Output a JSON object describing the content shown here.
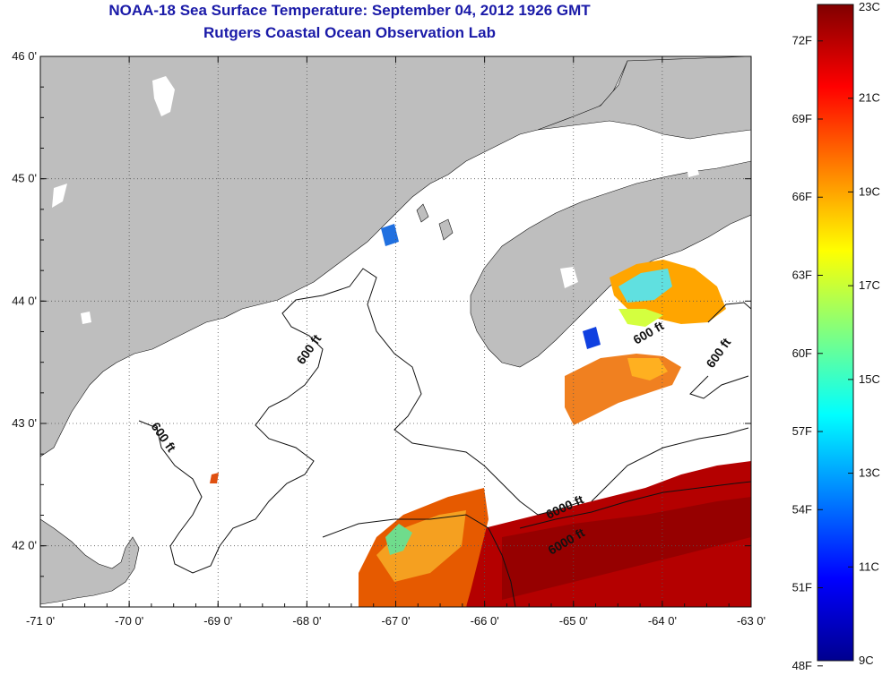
{
  "title": "NOAA-18 Sea Surface Temperature:  September 04, 2012 1926 GMT",
  "subtitle": "Rutgers Coastal Ocean Observation Lab",
  "map": {
    "lon_range": [
      -71,
      -63
    ],
    "lat_range": [
      41.5,
      46
    ],
    "lon_ticks": [
      "-71 0'",
      "-70 0'",
      "-69 0'",
      "-68 0'",
      "-67 0'",
      "-66 0'",
      "-65 0'",
      "-64 0'",
      "-63 0'"
    ],
    "lat_ticks": [
      "46 0'",
      "45 0'",
      "44 0'",
      "43 0'",
      "42 0'"
    ],
    "grid": "dotted",
    "land_color": "#bebebe",
    "contour_labels": [
      "600 ft",
      "600 ft",
      "600 ft",
      "600 ft",
      "6000 ft"
    ]
  },
  "colorbar": {
    "min_c": 9,
    "max_c": 23,
    "colors": [
      "#00008f",
      "#0000ff",
      "#0080ff",
      "#00ffff",
      "#80ff80",
      "#ffff00",
      "#ff8000",
      "#ff0000",
      "#800000"
    ],
    "f_labels": [
      "72F",
      "69F",
      "66F",
      "63F",
      "60F",
      "57F",
      "54F",
      "51F",
      "48F"
    ],
    "c_labels": [
      "23C",
      "21C",
      "19C",
      "17C",
      "15C",
      "13C",
      "11C",
      "9C"
    ]
  }
}
